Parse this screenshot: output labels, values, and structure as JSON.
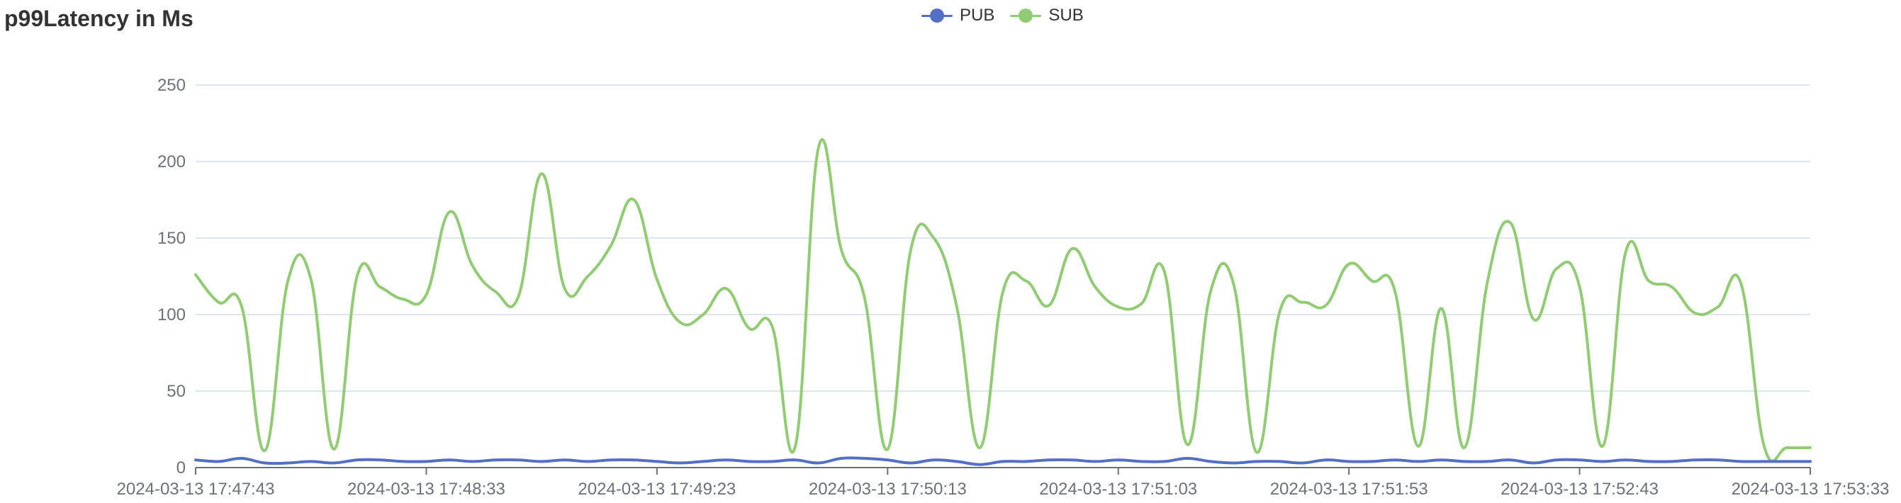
{
  "title": "p99Latency in Ms",
  "legend": [
    {
      "name": "PUB",
      "color": "#5470c6"
    },
    {
      "name": "SUB",
      "color": "#91cc75"
    }
  ],
  "chart_data": {
    "type": "line",
    "title": "p99Latency in Ms",
    "xlabel": "",
    "ylabel": "",
    "ylim": [
      0,
      250
    ],
    "yticks": [
      0,
      50,
      100,
      150,
      200,
      250
    ],
    "xticks": [
      "2024-03-13 17:47:43",
      "2024-03-13 17:48:33",
      "2024-03-13 17:49:23",
      "2024-03-13 17:50:13",
      "2024-03-13 17:51:03",
      "2024-03-13 17:51:53",
      "2024-03-13 17:52:43",
      "2024-03-13 17:53:33"
    ],
    "x_start": "2024-03-13 17:47:43",
    "x_end": "2024-03-13 17:53:33",
    "x_step_seconds": 5,
    "grid": true,
    "legend_position": "top-center",
    "series": [
      {
        "name": "PUB",
        "color": "#5470c6",
        "values": [
          5,
          4,
          6,
          3,
          3,
          4,
          3,
          5,
          5,
          4,
          4,
          5,
          4,
          5,
          5,
          4,
          5,
          4,
          5,
          5,
          4,
          3,
          4,
          5,
          4,
          4,
          5,
          3,
          6,
          6,
          5,
          3,
          5,
          4,
          2,
          4,
          4,
          5,
          5,
          4,
          5,
          4,
          4,
          6,
          4,
          3,
          4,
          4,
          3,
          5,
          4,
          4,
          5,
          4,
          5,
          4,
          4,
          5,
          3,
          5,
          5,
          4,
          5,
          4,
          4,
          5,
          5,
          4,
          4,
          4,
          4
        ]
      },
      {
        "name": "SUB",
        "color": "#91cc75",
        "values": [
          126,
          108,
          105,
          11,
          122,
          123,
          12,
          125,
          118,
          110,
          113,
          167,
          132,
          115,
          112,
          192,
          117,
          125,
          145,
          175,
          123,
          95,
          100,
          117,
          91,
          92,
          14,
          209,
          142,
          111,
          12,
          142,
          150,
          105,
          13,
          115,
          122,
          106,
          143,
          118,
          105,
          107,
          128,
          15,
          115,
          120,
          10,
          102,
          108,
          106,
          133,
          122,
          115,
          14,
          104,
          13,
          121,
          160,
          97,
          130,
          118,
          14,
          141,
          122,
          118,
          101,
          105,
          120,
          14,
          13,
          13
        ]
      }
    ]
  }
}
